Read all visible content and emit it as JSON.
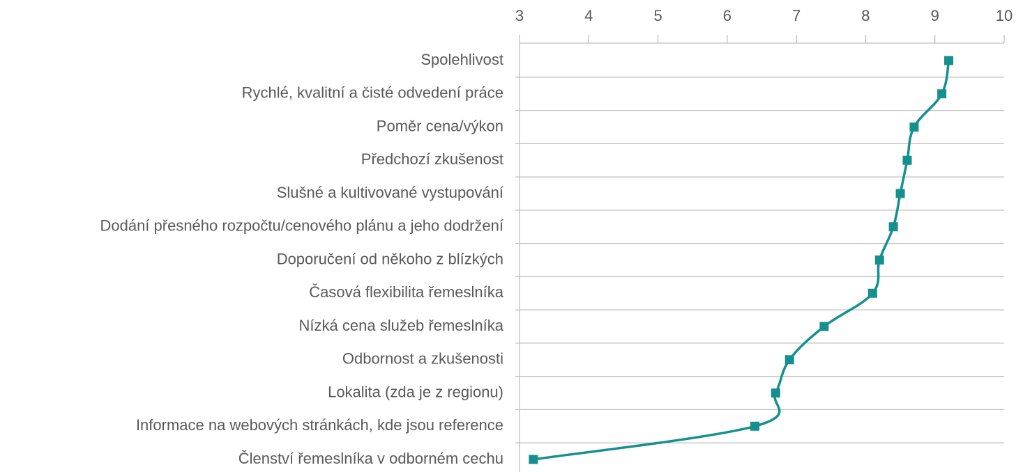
{
  "chart_data": {
    "type": "line",
    "orientation": "horizontal",
    "categories": [
      "Spolehlivost",
      "Rychlé, kvalitní a čisté odvedení práce",
      "Poměr cena/výkon",
      "Předchozí zkušenost",
      "Slušné a kultivované vystupování",
      "Dodání přesného rozpočtu/cenového plánu a jeho dodržení",
      "Doporučení od někoho z blízkých",
      "Časová flexibilita řemeslníka",
      "Nízká cena služeb řemeslníka",
      "Odbornost a zkušenosti",
      "Lokalita (zda je z regionu)",
      "Informace na webových stránkách, kde jsou reference",
      "Členství řemeslníka v odborném cechu"
    ],
    "values": [
      9.2,
      9.1,
      8.7,
      8.6,
      8.5,
      8.4,
      8.2,
      8.1,
      7.4,
      6.9,
      6.7,
      6.4,
      3.2
    ],
    "color": "#14908f",
    "xlim": [
      3,
      10
    ],
    "xticks": [
      3,
      4,
      5,
      6,
      7,
      8,
      9,
      10
    ],
    "grid": true
  }
}
